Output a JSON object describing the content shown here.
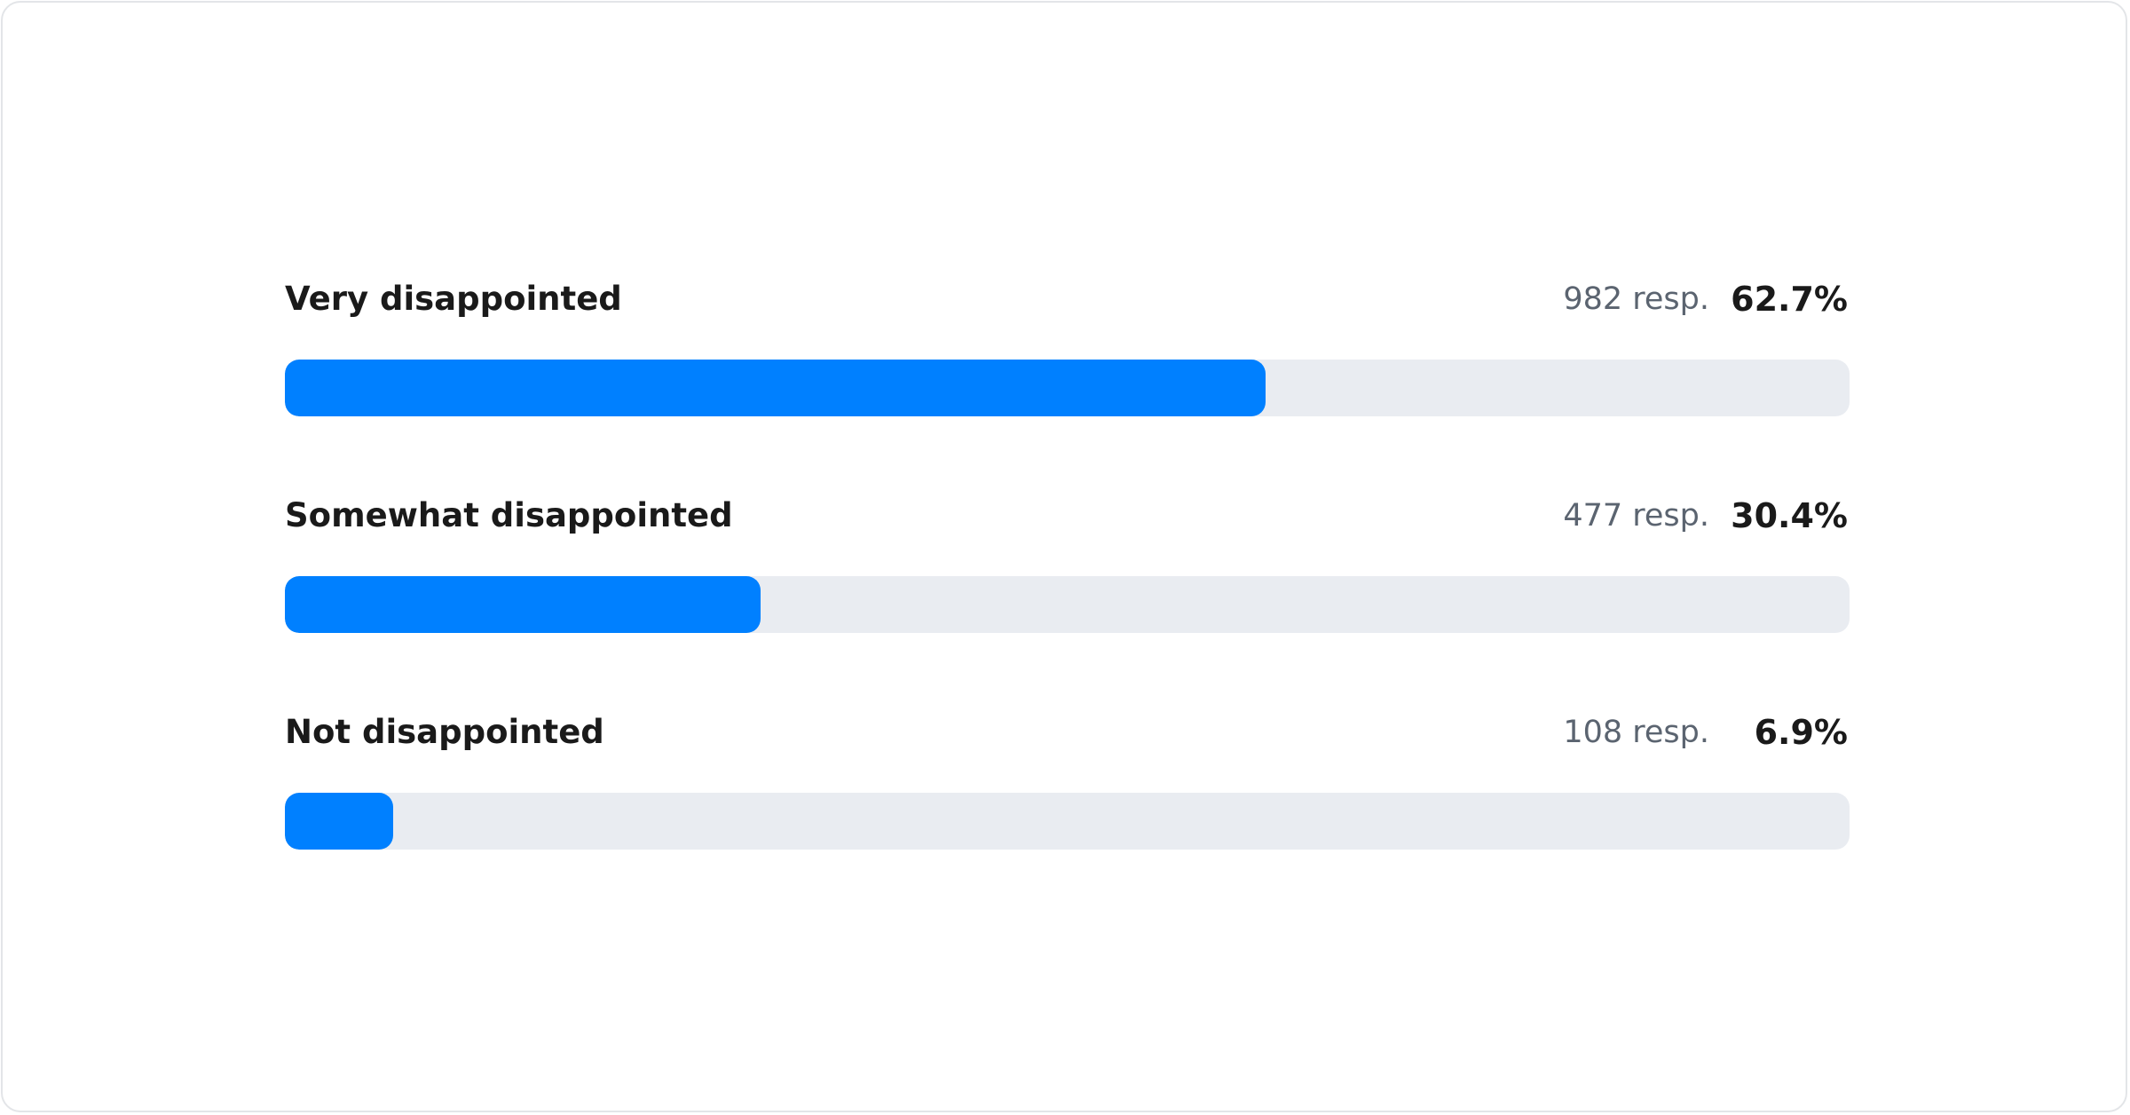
{
  "chart_data": {
    "type": "bar",
    "orientation": "horizontal",
    "xlim": [
      0,
      100
    ],
    "grid": false,
    "colors": {
      "fill": "#0080ff",
      "track": "#e9ecf1"
    },
    "categories": [
      "Very disappointed",
      "Somewhat disappointed",
      "Not disappointed"
    ],
    "responses": [
      "982 resp.",
      "477 resp.",
      "108 resp."
    ],
    "percent_labels": [
      "62.7%",
      "30.4%",
      "6.9%"
    ],
    "values": [
      62.7,
      30.4,
      6.9
    ]
  }
}
